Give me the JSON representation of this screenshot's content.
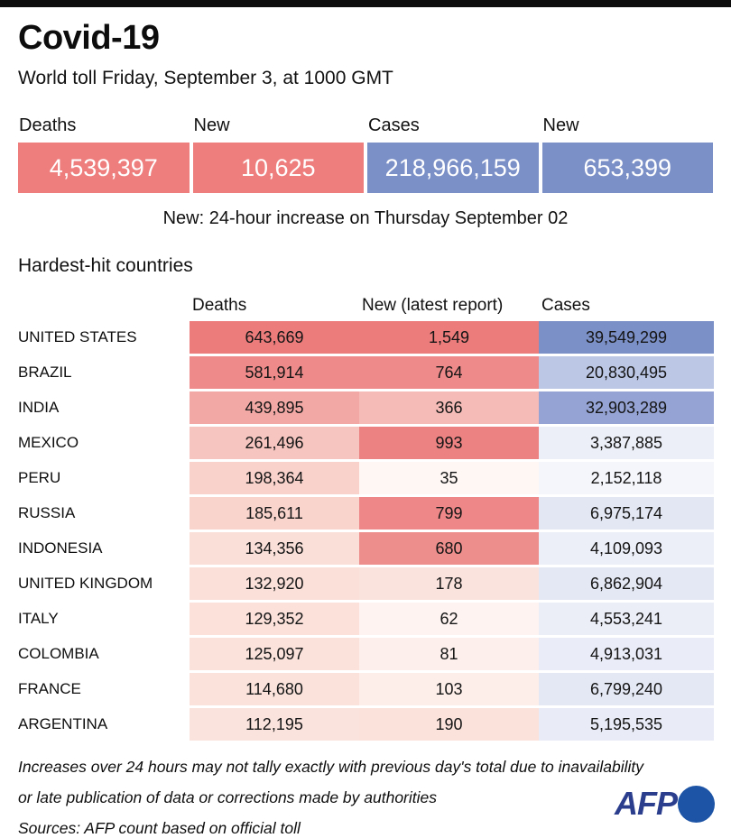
{
  "title": "Covid-19",
  "subtitle": "World toll Friday, September 3, at 1000 GMT",
  "summary": {
    "items": [
      {
        "label": "Deaths",
        "value": "4,539,397",
        "color": "#ee7e7e"
      },
      {
        "label": "New",
        "value": "10,625",
        "color": "#ee7e7e"
      },
      {
        "label": "Cases",
        "value": "218,966,159",
        "color": "#7c90c8"
      },
      {
        "label": "New",
        "value": "653,399",
        "color": "#7c90c8"
      }
    ],
    "note": "New: 24-hour increase on Thursday September 02"
  },
  "table": {
    "heading": "Hardest-hit countries",
    "columns": [
      "Deaths",
      "New (latest report)",
      "Cases"
    ],
    "rows": [
      {
        "country": "UNITED STATES",
        "deaths": "643,669",
        "new": "1,549",
        "cases": "39,549,299",
        "deaths_color": "#ec7c7c",
        "new_color": "#ec7c7c",
        "cases_color": "#7c90c8"
      },
      {
        "country": "BRAZIL",
        "deaths": "581,914",
        "new": "764",
        "cases": "20,830,495",
        "deaths_color": "#ee8a89",
        "new_color": "#ee8a89",
        "cases_color": "#bcc6e5"
      },
      {
        "country": "INDIA",
        "deaths": "439,895",
        "new": "366",
        "cases": "32,903,289",
        "deaths_color": "#f2a9a5",
        "new_color": "#f5bcb7",
        "cases_color": "#94a3d4"
      },
      {
        "country": "MEXICO",
        "deaths": "261,496",
        "new": "993",
        "cases": "3,387,885",
        "deaths_color": "#f6c5bf",
        "new_color": "#ed8282",
        "cases_color": "#edeff8"
      },
      {
        "country": "PERU",
        "deaths": "198,364",
        "new": "35",
        "cases": "2,152,118",
        "deaths_color": "#f8d2cb",
        "new_color": "#fef7f4",
        "cases_color": "#f5f6fb"
      },
      {
        "country": "RUSSIA",
        "deaths": "185,611",
        "new": "799",
        "cases": "6,975,174",
        "deaths_color": "#f8d4cd",
        "new_color": "#ee8787",
        "cases_color": "#e3e7f4"
      },
      {
        "country": "INDONESIA",
        "deaths": "134,356",
        "new": "680",
        "cases": "4,109,093",
        "deaths_color": "#fadfd8",
        "new_color": "#ee8e8c",
        "cases_color": "#eceef8"
      },
      {
        "country": "UNITED KINGDOM",
        "deaths": "132,920",
        "new": "178",
        "cases": "6,862,904",
        "deaths_color": "#fbe0d9",
        "new_color": "#fbe3dd",
        "cases_color": "#e4e8f4"
      },
      {
        "country": "ITALY",
        "deaths": "129,352",
        "new": "62",
        "cases": "4,553,241",
        "deaths_color": "#fbe1da",
        "new_color": "#fef3f0",
        "cases_color": "#ebedf7"
      },
      {
        "country": "COLOMBIA",
        "deaths": "125,097",
        "new": "81",
        "cases": "4,913,031",
        "deaths_color": "#fbe2db",
        "new_color": "#fdf0ec",
        "cases_color": "#eaecf7"
      },
      {
        "country": "FRANCE",
        "deaths": "114,680",
        "new": "103",
        "cases": "6,799,240",
        "deaths_color": "#fbe3dc",
        "new_color": "#fdeee9",
        "cases_color": "#e4e8f5"
      },
      {
        "country": "ARGENTINA",
        "deaths": "112,195",
        "new": "190",
        "cases": "5,195,535",
        "deaths_color": "#fbe3dd",
        "new_color": "#fbe2db",
        "cases_color": "#e9ecf6"
      }
    ]
  },
  "footnotes": [
    "Increases over 24 hours may not tally exactly with previous day's total due to inavailability",
    "or late publication of data or corrections made by authorities"
  ],
  "source": "Sources: AFP count based on official toll",
  "logo": {
    "text": "AFP"
  },
  "colors": {
    "heat_red_max": "#ec7c7c",
    "heat_blue_max": "#7c90c8",
    "topbar": "#0d0d0d",
    "afp_text": "#2b3e8e",
    "afp_circle": "#1d54a6"
  },
  "chart_data": {
    "type": "table",
    "title": "Covid-19",
    "subtitle": "World toll Friday, September 3, at 1000 GMT",
    "world_totals": {
      "deaths": 4539397,
      "new_deaths": 10625,
      "cases": 218966159,
      "new_cases": 653399
    },
    "note": "New: 24-hour increase on Thursday September 02",
    "section": "Hardest-hit countries",
    "columns": [
      "Deaths",
      "New (latest report)",
      "Cases"
    ],
    "countries": [
      "UNITED STATES",
      "BRAZIL",
      "INDIA",
      "MEXICO",
      "PERU",
      "RUSSIA",
      "INDONESIA",
      "UNITED KINGDOM",
      "ITALY",
      "COLOMBIA",
      "FRANCE",
      "ARGENTINA"
    ],
    "series": [
      {
        "name": "Deaths",
        "values": [
          643669,
          581914,
          439895,
          261496,
          198364,
          185611,
          134356,
          132920,
          129352,
          125097,
          114680,
          112195
        ]
      },
      {
        "name": "New (latest report)",
        "values": [
          1549,
          764,
          366,
          993,
          35,
          799,
          680,
          178,
          62,
          81,
          103,
          190
        ]
      },
      {
        "name": "Cases",
        "values": [
          39549299,
          20830495,
          32903289,
          3387885,
          2152118,
          6975174,
          4109093,
          6862904,
          4553241,
          4913031,
          6799240,
          5195535
        ]
      }
    ],
    "layout": "heatmap-shaded table; deaths/new columns shaded white-to-red, cases column shaded white-to-blue, proportional to value"
  }
}
